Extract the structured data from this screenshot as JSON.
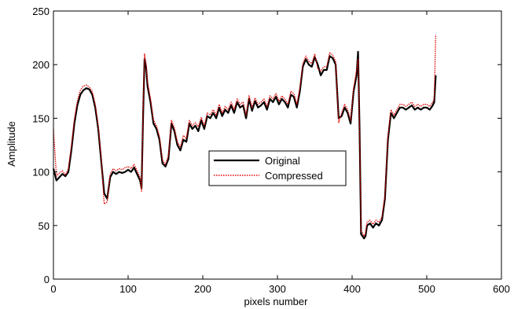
{
  "chart_data": {
    "type": "line",
    "title": "",
    "xlabel": "pixels number",
    "ylabel": "Amplitude",
    "xlim": [
      0,
      600
    ],
    "ylim": [
      0,
      250
    ],
    "xticks": [
      0,
      100,
      200,
      300,
      400,
      500,
      600
    ],
    "yticks": [
      0,
      50,
      100,
      150,
      200,
      250
    ],
    "grid": false,
    "legend": {
      "position": "center",
      "entries": [
        "Original",
        "Compressed"
      ]
    },
    "series": [
      {
        "name": "Original",
        "color": "#000000",
        "style": "solid",
        "x": [
          0,
          4,
          8,
          12,
          16,
          20,
          24,
          28,
          32,
          36,
          40,
          44,
          48,
          52,
          56,
          60,
          64,
          68,
          72,
          76,
          80,
          84,
          88,
          92,
          96,
          100,
          104,
          108,
          112,
          116,
          118,
          120,
          122,
          124,
          126,
          130,
          134,
          138,
          142,
          146,
          150,
          154,
          158,
          162,
          166,
          170,
          174,
          178,
          182,
          186,
          190,
          194,
          198,
          202,
          206,
          210,
          214,
          218,
          222,
          226,
          230,
          234,
          238,
          242,
          246,
          250,
          254,
          258,
          262,
          266,
          270,
          274,
          278,
          282,
          286,
          290,
          294,
          298,
          302,
          306,
          310,
          314,
          318,
          322,
          326,
          330,
          334,
          338,
          342,
          346,
          350,
          354,
          358,
          362,
          366,
          370,
          374,
          378,
          382,
          386,
          390,
          394,
          398,
          402,
          406,
          408,
          410,
          412,
          414,
          416,
          418,
          420,
          424,
          428,
          432,
          436,
          440,
          444,
          448,
          452,
          456,
          460,
          464,
          468,
          472,
          476,
          480,
          484,
          488,
          492,
          496,
          500,
          504,
          508,
          510,
          512
        ],
        "y": [
          103,
          92,
          95,
          98,
          96,
          100,
          120,
          145,
          162,
          172,
          176,
          178,
          177,
          172,
          160,
          140,
          110,
          80,
          75,
          95,
          100,
          98,
          100,
          99,
          100,
          102,
          100,
          104,
          98,
          92,
          85,
          150,
          205,
          198,
          180,
          165,
          145,
          140,
          130,
          108,
          105,
          112,
          145,
          138,
          125,
          120,
          130,
          128,
          145,
          140,
          143,
          138,
          148,
          140,
          152,
          150,
          155,
          150,
          160,
          152,
          158,
          155,
          162,
          155,
          165,
          160,
          162,
          150,
          168,
          157,
          166,
          160,
          162,
          165,
          158,
          168,
          165,
          170,
          163,
          168,
          165,
          160,
          172,
          170,
          160,
          175,
          198,
          205,
          200,
          198,
          207,
          200,
          190,
          195,
          195,
          208,
          206,
          200,
          150,
          152,
          160,
          155,
          145,
          175,
          190,
          212,
          140,
          42,
          40,
          38,
          40,
          50,
          52,
          48,
          52,
          50,
          55,
          75,
          130,
          155,
          150,
          155,
          160,
          160,
          158,
          160,
          162,
          158,
          160,
          158,
          160,
          160,
          158,
          162,
          165,
          190
        ]
      },
      {
        "name": "Compressed",
        "color": "#e00000",
        "style": "dotted",
        "x": [
          0,
          4,
          8,
          12,
          16,
          20,
          24,
          28,
          32,
          36,
          40,
          44,
          48,
          52,
          56,
          60,
          64,
          68,
          72,
          76,
          80,
          84,
          88,
          92,
          96,
          100,
          104,
          108,
          112,
          116,
          118,
          120,
          122,
          124,
          126,
          130,
          134,
          138,
          142,
          146,
          150,
          154,
          158,
          162,
          166,
          170,
          174,
          178,
          182,
          186,
          190,
          194,
          198,
          202,
          206,
          210,
          214,
          218,
          222,
          226,
          230,
          234,
          238,
          242,
          246,
          250,
          254,
          258,
          262,
          266,
          270,
          274,
          278,
          282,
          286,
          290,
          294,
          298,
          302,
          306,
          310,
          314,
          318,
          322,
          326,
          330,
          334,
          338,
          342,
          346,
          350,
          354,
          358,
          362,
          366,
          370,
          374,
          378,
          382,
          386,
          390,
          394,
          398,
          402,
          406,
          408,
          410,
          412,
          414,
          416,
          418,
          420,
          424,
          428,
          432,
          436,
          440,
          444,
          448,
          452,
          456,
          460,
          464,
          468,
          472,
          476,
          480,
          484,
          488,
          492,
          496,
          500,
          504,
          508,
          510,
          512
        ],
        "y": [
          140,
          96,
          99,
          101,
          97,
          103,
          124,
          149,
          166,
          176,
          180,
          181,
          179,
          175,
          163,
          143,
          113,
          70,
          72,
          98,
          103,
          101,
          103,
          102,
          104,
          105,
          103,
          107,
          101,
          95,
          82,
          154,
          210,
          201,
          184,
          168,
          148,
          143,
          133,
          111,
          107,
          115,
          148,
          141,
          128,
          123,
          134,
          131,
          148,
          143,
          146,
          142,
          151,
          143,
          155,
          153,
          158,
          153,
          163,
          155,
          161,
          158,
          165,
          158,
          168,
          163,
          165,
          153,
          171,
          160,
          169,
          163,
          165,
          168,
          161,
          171,
          168,
          173,
          166,
          171,
          168,
          163,
          175,
          173,
          163,
          178,
          201,
          208,
          203,
          201,
          210,
          196,
          194,
          198,
          198,
          211,
          209,
          203,
          146,
          155,
          163,
          158,
          148,
          178,
          195,
          205,
          140,
          45,
          43,
          40,
          43,
          53,
          55,
          51,
          55,
          53,
          58,
          78,
          133,
          158,
          153,
          158,
          163,
          163,
          161,
          163,
          165,
          161,
          163,
          161,
          163,
          163,
          161,
          165,
          168,
          228
        ]
      }
    ]
  }
}
